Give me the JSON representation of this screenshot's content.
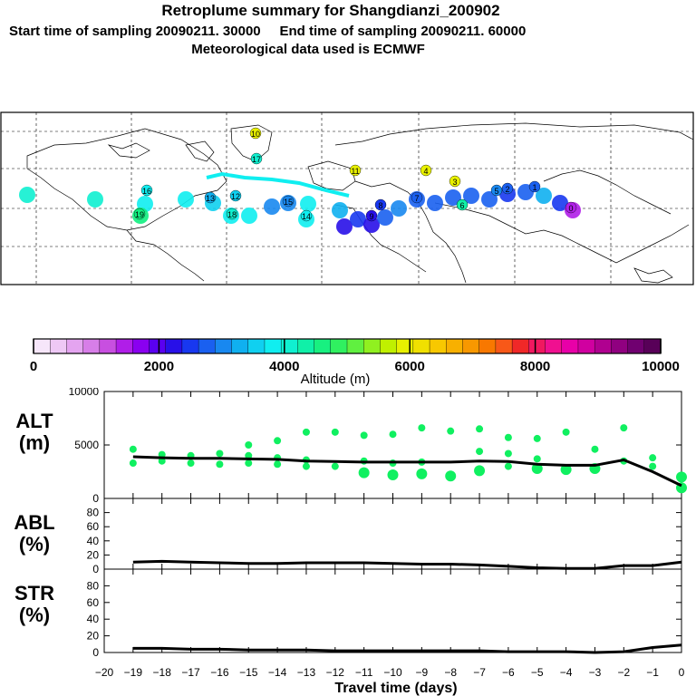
{
  "header": {
    "title": "Retroplume summary for Shangdianzi_200902",
    "line2": "Start time of sampling 20090211. 30000     End time of sampling 20090211. 60000",
    "line3": "Meteorological data used is ECMWF"
  },
  "colorbar": {
    "label": "Altitude (m)",
    "ticks": [
      "0",
      "2000",
      "4000",
      "6000",
      "8000",
      "10000"
    ],
    "colors": [
      "#f6e6fa",
      "#eec8f5",
      "#e4a4f0",
      "#d77ee8",
      "#c84fe0",
      "#b01ee8",
      "#8a00f0",
      "#5a00f0",
      "#2810e8",
      "#1838f0",
      "#1a60f0",
      "#1888f0",
      "#10b0f0",
      "#10d0f0",
      "#10eef0",
      "#10f0d0",
      "#10f0a8",
      "#18f080",
      "#30f060",
      "#60f040",
      "#90f020",
      "#c0f000",
      "#e8f000",
      "#f0e000",
      "#f8c800",
      "#f8b000",
      "#f89800",
      "#f87800",
      "#f85818",
      "#f02828",
      "#f01860",
      "#f01090",
      "#e800a8",
      "#d000a0",
      "#b00090",
      "#900080",
      "#700070",
      "#580058"
    ]
  },
  "chart_data": [
    {
      "type": "scatter",
      "name": "ALT",
      "ylabel": "ALT\n(m)",
      "ylabel_lines": [
        "ALT",
        "(m)"
      ],
      "ylim": [
        0,
        10000
      ],
      "yticks": [
        "0",
        "5000",
        "10000"
      ],
      "x": [
        -19,
        -18,
        -17,
        -16,
        -15,
        -14,
        -13,
        -12,
        -11,
        -10,
        -9,
        -8,
        -7,
        -6,
        -5,
        -4,
        -3,
        -2,
        -1,
        0
      ],
      "mean_line": [
        3900,
        3800,
        3750,
        3750,
        3700,
        3650,
        3500,
        3450,
        3400,
        3400,
        3400,
        3400,
        3500,
        3450,
        3200,
        3100,
        3100,
        3600,
        2500,
        1200
      ],
      "points": [
        {
          "x": -19,
          "y": 4600
        },
        {
          "x": -19,
          "y": 3300
        },
        {
          "x": -18,
          "y": 4100
        },
        {
          "x": -18,
          "y": 3500
        },
        {
          "x": -17,
          "y": 4000
        },
        {
          "x": -17,
          "y": 3300
        },
        {
          "x": -16,
          "y": 4200
        },
        {
          "x": -16,
          "y": 3200
        },
        {
          "x": -15,
          "y": 4000
        },
        {
          "x": -15,
          "y": 3300
        },
        {
          "x": -15,
          "y": 5000
        },
        {
          "x": -14,
          "y": 3800
        },
        {
          "x": -14,
          "y": 3200
        },
        {
          "x": -14,
          "y": 5400
        },
        {
          "x": -13,
          "y": 3600
        },
        {
          "x": -13,
          "y": 3000
        },
        {
          "x": -13,
          "y": 6200
        },
        {
          "x": -12,
          "y": 3000
        },
        {
          "x": -12,
          "y": 6200
        },
        {
          "x": -11,
          "y": 2400
        },
        {
          "x": -11,
          "y": 3500
        },
        {
          "x": -11,
          "y": 5900
        },
        {
          "x": -10,
          "y": 2200
        },
        {
          "x": -10,
          "y": 3300
        },
        {
          "x": -10,
          "y": 6000
        },
        {
          "x": -9,
          "y": 2300
        },
        {
          "x": -9,
          "y": 3400
        },
        {
          "x": -9,
          "y": 6600
        },
        {
          "x": -8,
          "y": 2100
        },
        {
          "x": -8,
          "y": 6300
        },
        {
          "x": -7,
          "y": 2600
        },
        {
          "x": -7,
          "y": 4400
        },
        {
          "x": -7,
          "y": 6500
        },
        {
          "x": -6,
          "y": 3000
        },
        {
          "x": -6,
          "y": 4200
        },
        {
          "x": -6,
          "y": 5700
        },
        {
          "x": -5,
          "y": 2800
        },
        {
          "x": -5,
          "y": 3700
        },
        {
          "x": -5,
          "y": 5600
        },
        {
          "x": -4,
          "y": 2700
        },
        {
          "x": -4,
          "y": 6200
        },
        {
          "x": -3,
          "y": 2800
        },
        {
          "x": -3,
          "y": 4600
        },
        {
          "x": -2,
          "y": 3500
        },
        {
          "x": -2,
          "y": 6600
        },
        {
          "x": -1,
          "y": 3800
        },
        {
          "x": -1,
          "y": 3000
        },
        {
          "x": 0,
          "y": 1000
        },
        {
          "x": 0,
          "y": 2000
        }
      ]
    },
    {
      "type": "line",
      "name": "ABL",
      "ylabel": "ABL\n(%)",
      "ylabel_lines": [
        "ABL",
        "(%)"
      ],
      "ylim": [
        0,
        100
      ],
      "yticks": [
        "0",
        "20",
        "40",
        "60",
        "80"
      ],
      "x": [
        -19,
        -18,
        -17,
        -16,
        -15,
        -14,
        -13,
        -12,
        -11,
        -10,
        -9,
        -8,
        -7,
        -6,
        -5,
        -4,
        -3,
        -2,
        -1,
        0
      ],
      "values": [
        10,
        11,
        10,
        9,
        8,
        8,
        9,
        9,
        9,
        8,
        7,
        7,
        6,
        4,
        2,
        1,
        1,
        5,
        5,
        10
      ]
    },
    {
      "type": "line",
      "name": "STR",
      "ylabel": "STR\n(%)",
      "ylabel_lines": [
        "STR",
        "(%)"
      ],
      "ylim": [
        0,
        100
      ],
      "yticks": [
        "0",
        "20",
        "40",
        "60",
        "80"
      ],
      "x": [
        -19,
        -18,
        -17,
        -16,
        -15,
        -14,
        -13,
        -12,
        -11,
        -10,
        -9,
        -8,
        -7,
        -6,
        -5,
        -4,
        -3,
        -2,
        -1,
        0
      ],
      "values": [
        5,
        5,
        4,
        4,
        3,
        3,
        3,
        2,
        2,
        2,
        2,
        2,
        2,
        1,
        1,
        1,
        0,
        1,
        6,
        9
      ]
    }
  ],
  "x_axis": {
    "label": "Travel time (days)",
    "ticks": [
      "−20",
      "−19",
      "−18",
      "−17",
      "−16",
      "−15",
      "−14",
      "−13",
      "−12",
      "−11",
      "−10",
      "−9",
      "−8",
      "−7",
      "−6",
      "−5",
      "−4",
      "−3",
      "−2",
      "−1",
      "0"
    ]
  },
  "map": {
    "labels": [
      {
        "t": "10",
        "c": "#e8f000"
      },
      {
        "t": "17",
        "c": "#10f0d0"
      },
      {
        "t": "19",
        "c": "#10f080"
      },
      {
        "t": "16",
        "c": "#10eef0"
      },
      {
        "t": "18",
        "c": "#10f0d0"
      },
      {
        "t": "13",
        "c": "#10b0f0"
      },
      {
        "t": "15",
        "c": "#1888f0"
      },
      {
        "t": "14",
        "c": "#10eef0"
      },
      {
        "t": "12",
        "c": "#10d0f0"
      },
      {
        "t": "11",
        "c": "#e8f000"
      },
      {
        "t": "9",
        "c": "#2810e8"
      },
      {
        "t": "8",
        "c": "#1838f0"
      },
      {
        "t": "7",
        "c": "#1a60f0"
      },
      {
        "t": "6",
        "c": "#10f0a8"
      },
      {
        "t": "5",
        "c": "#1888f0"
      },
      {
        "t": "4",
        "c": "#e8f000"
      },
      {
        "t": "3",
        "c": "#e8f000"
      },
      {
        "t": "2",
        "c": "#1a60f0"
      },
      {
        "t": "1",
        "c": "#1a60f0"
      },
      {
        "t": "0",
        "c": "#b01ee8"
      }
    ]
  }
}
